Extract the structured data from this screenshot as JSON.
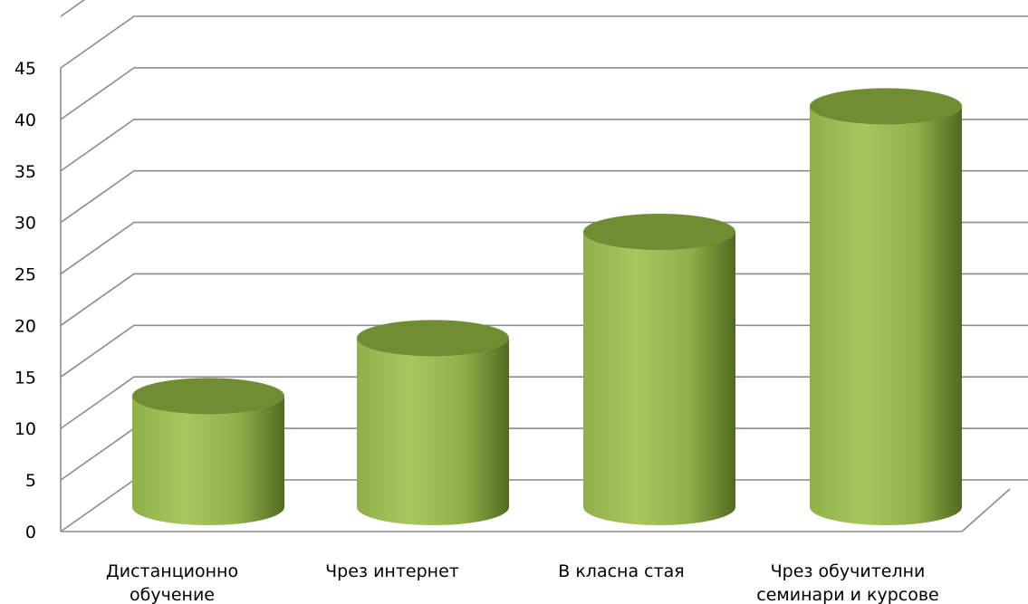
{
  "chart_data": {
    "type": "bar",
    "style": "3d-cylinder",
    "categories": [
      [
        "Дистанционно",
        "обучение"
      ],
      [
        "Чрез интернет"
      ],
      [
        "В класна стая"
      ],
      [
        "Чрез обучителни",
        "семинари и курсове"
      ]
    ],
    "values": [
      11.5,
      17.5,
      28.5,
      41.5
    ],
    "title": "",
    "xlabel": "",
    "ylabel": "",
    "ylim": [
      0,
      45
    ],
    "yticks": [
      0,
      5,
      10,
      15,
      20,
      25,
      30,
      35,
      40,
      45
    ],
    "grid": true,
    "legend": "none",
    "colors": {
      "bar_light": "#a8c85e",
      "bar_mid": "#8fb04a",
      "bar_dark": "#4f6a20",
      "bar_top": "#6f8e33",
      "grid": "#8c8c8c"
    }
  }
}
